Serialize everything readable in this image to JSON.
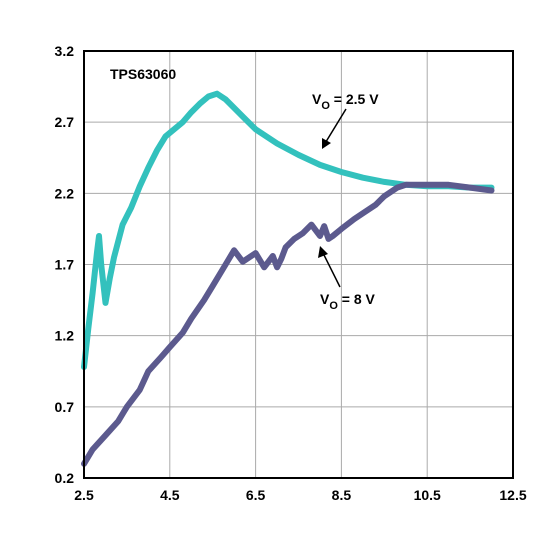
{
  "chart_data": {
    "type": "line",
    "title": "",
    "xlabel": "",
    "ylabel": "",
    "xlim": [
      2.5,
      12.5
    ],
    "ylim": [
      0.2,
      3.2
    ],
    "xticks": [
      2.5,
      4.5,
      6.5,
      8.5,
      10.5,
      12.5
    ],
    "xtick_labels": [
      "2.5",
      "4.5",
      "6.5",
      "8.5",
      "10.5",
      "12.5"
    ],
    "yticks": [
      0.2,
      0.7,
      1.2,
      1.7,
      2.2,
      2.7,
      3.2
    ],
    "ytick_labels": [
      "0.2",
      "0.7",
      "1.2",
      "1.7",
      "2.2",
      "2.7",
      "3.2"
    ],
    "grid": true,
    "device_label": "TPS63060",
    "series": [
      {
        "key": "vo_2_5",
        "label_main": "V",
        "label_sub": "O",
        "label_rest": " = 2.5 V",
        "color": "#33c1bd",
        "x": [
          2.5,
          2.6,
          2.7,
          2.8,
          2.85,
          2.9,
          3.0,
          3.1,
          3.2,
          3.4,
          3.6,
          3.8,
          4.0,
          4.2,
          4.4,
          4.6,
          4.8,
          5.0,
          5.2,
          5.4,
          5.6,
          5.8,
          6.0,
          6.2,
          6.5,
          7.0,
          7.5,
          8.0,
          8.5,
          9.0,
          9.5,
          10.0,
          10.5,
          11.0,
          11.5,
          12.0
        ],
        "y": [
          0.98,
          1.25,
          1.5,
          1.78,
          1.9,
          1.7,
          1.43,
          1.6,
          1.75,
          1.98,
          2.1,
          2.25,
          2.38,
          2.5,
          2.6,
          2.65,
          2.7,
          2.77,
          2.83,
          2.88,
          2.9,
          2.86,
          2.8,
          2.74,
          2.65,
          2.55,
          2.47,
          2.4,
          2.35,
          2.31,
          2.28,
          2.26,
          2.25,
          2.25,
          2.24,
          2.24
        ]
      },
      {
        "key": "vo_8",
        "label_main": "V",
        "label_sub": "O",
        "label_rest": " = 8 V",
        "color": "#5c5a8e",
        "x": [
          2.5,
          2.7,
          3.0,
          3.3,
          3.5,
          3.8,
          4.0,
          4.3,
          4.5,
          4.8,
          5.0,
          5.3,
          5.5,
          5.8,
          6.0,
          6.2,
          6.5,
          6.7,
          6.9,
          7.0,
          7.1,
          7.2,
          7.4,
          7.6,
          7.8,
          8.0,
          8.1,
          8.2,
          8.3,
          8.5,
          8.8,
          9.0,
          9.3,
          9.5,
          9.8,
          10.0,
          10.5,
          11.0,
          11.5,
          12.0
        ],
        "y": [
          0.3,
          0.4,
          0.5,
          0.6,
          0.7,
          0.82,
          0.95,
          1.05,
          1.12,
          1.22,
          1.32,
          1.45,
          1.55,
          1.7,
          1.8,
          1.72,
          1.78,
          1.68,
          1.76,
          1.68,
          1.74,
          1.82,
          1.88,
          1.92,
          1.98,
          1.9,
          1.97,
          1.88,
          1.9,
          1.95,
          2.02,
          2.06,
          2.12,
          2.18,
          2.24,
          2.26,
          2.26,
          2.26,
          2.24,
          2.22
        ]
      }
    ]
  }
}
